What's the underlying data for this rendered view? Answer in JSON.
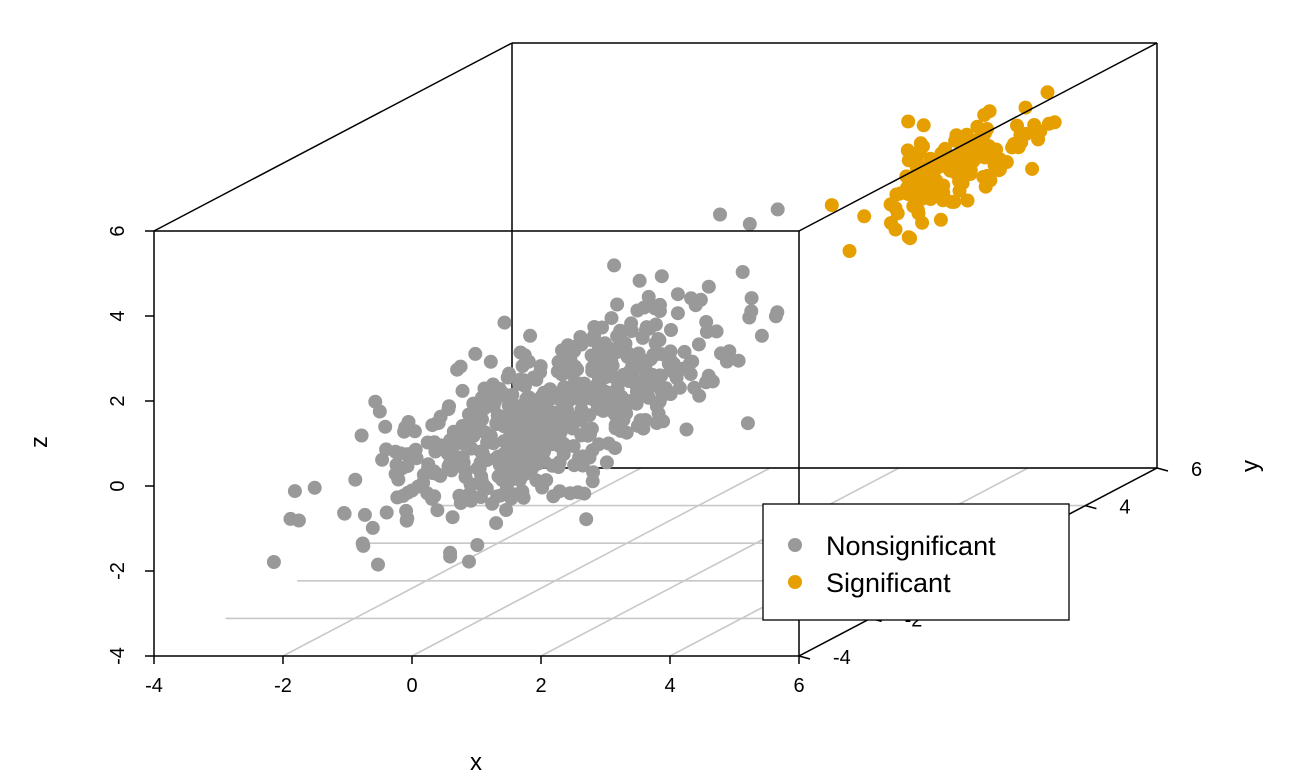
{
  "chart_data": {
    "type": "scatter",
    "dimensions": 3,
    "xlabel": "x",
    "ylabel": "y",
    "zlabel": "z",
    "xlim": [
      -4,
      6
    ],
    "ylim": [
      -4,
      6
    ],
    "zlim": [
      -4,
      6
    ],
    "x_ticks": [
      "-4",
      "-2",
      "0",
      "2",
      "4",
      "6"
    ],
    "y_ticks": [
      "-4",
      "-2",
      "2",
      "4",
      "6"
    ],
    "z_ticks": [
      "-4",
      "-2",
      "0",
      "2",
      "4",
      "6"
    ],
    "grid": "floor",
    "box": true,
    "legend_position": "bottom-right",
    "series": [
      {
        "name": "Nonsignificant",
        "color": "#999999",
        "n": 600,
        "distribution": "multivariate-normal",
        "mean": [
          0,
          0,
          0
        ],
        "sd": [
          1,
          1,
          1
        ],
        "correlation": 0.5
      },
      {
        "name": "Significant",
        "color": "#E69F00",
        "n": 150,
        "distribution": "multivariate-normal",
        "mean": [
          4,
          4,
          4
        ],
        "sd": [
          0.5,
          0.5,
          0.5
        ],
        "correlation": 0.5
      }
    ]
  }
}
